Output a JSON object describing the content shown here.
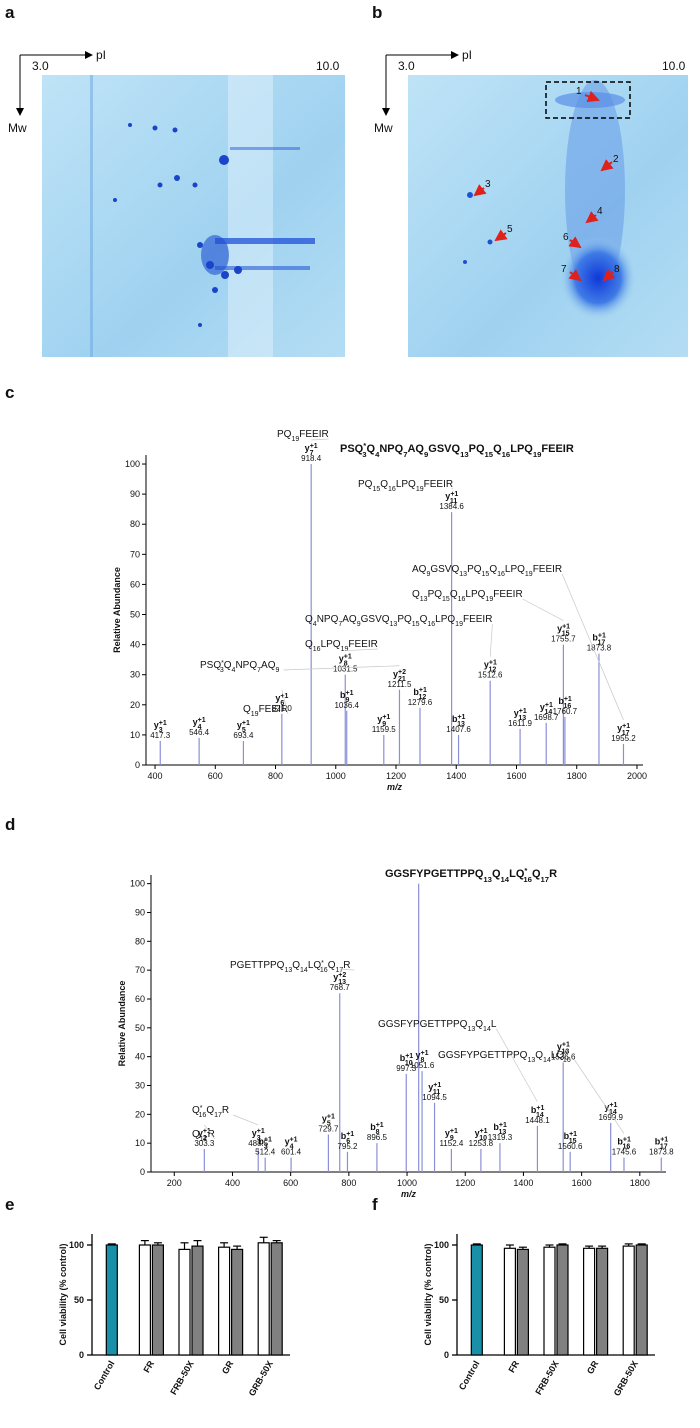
{
  "gels": [
    {
      "label": "a",
      "x_axis": "pI",
      "y_axis": "Mw",
      "x_start": "3.0",
      "x_end": "10.0"
    },
    {
      "label": "b",
      "x_axis": "pI",
      "y_axis": "Mw",
      "x_start": "3.0",
      "x_end": "10.0",
      "spots": [
        "1",
        "2",
        "3",
        "4",
        "5",
        "6",
        "7",
        "8"
      ]
    }
  ],
  "chart_data": [
    {
      "panel": "c",
      "type": "spectrum",
      "color": "#8a8fd8",
      "title": [
        {
          "t": "PSQ"
        },
        {
          "sup": "*"
        },
        {
          "sub": "3"
        },
        {
          "t": "Q"
        },
        {
          "sub": "4"
        },
        {
          "t": "NPQ"
        },
        {
          "sub": "7"
        },
        {
          "t": "AQ"
        },
        {
          "sub": "9"
        },
        {
          "t": "GSVQ"
        },
        {
          "sub": "13"
        },
        {
          "t": "PQ"
        },
        {
          "sub": "15"
        },
        {
          "t": "Q"
        },
        {
          "sub": "16"
        },
        {
          "t": "LPQ"
        },
        {
          "sub": "19"
        },
        {
          "t": "FEEIR"
        }
      ],
      "xlabel": "m/z",
      "ylabel": "Relative Abundance",
      "xlim": [
        370,
        2020
      ],
      "ylim": [
        0,
        103
      ],
      "xticks": [
        400,
        600,
        800,
        1000,
        1200,
        1400,
        1600,
        1800,
        2000
      ],
      "yticks": [
        0,
        10,
        20,
        30,
        40,
        50,
        60,
        70,
        80,
        90,
        100
      ],
      "peaks": [
        {
          "x": 417.3,
          "y": 8,
          "ion": "y",
          "sub": "3",
          "sup": "+1",
          "label": "417.3"
        },
        {
          "x": 546.4,
          "y": 9,
          "ion": "y",
          "sub": "4",
          "sup": "+1",
          "label": "546.4"
        },
        {
          "x": 693.4,
          "y": 8,
          "ion": "y",
          "sub": "5",
          "sup": "+1",
          "label": "693.4"
        },
        {
          "x": 821,
          "y": 17,
          "ion": "y",
          "sub": "6",
          "sup": "+1",
          "label": "821.0",
          "fragment": [
            {
              "t": "Q"
            },
            {
              "sub": "19"
            },
            {
              "t": "FEEIR"
            }
          ]
        },
        {
          "x": 918.4,
          "y": 100,
          "ion": "y",
          "sub": "7",
          "sup": "+1",
          "label": "918.4",
          "fragment": [
            {
              "t": "PQ"
            },
            {
              "sub": "19"
            },
            {
              "t": "FEEIR"
            }
          ]
        },
        {
          "x": 1031.5,
          "y": 30,
          "ion": "y",
          "sub": "8",
          "sup": "+1",
          "label": "1031.5",
          "fragment": [
            {
              "t": "Q"
            },
            {
              "sub": "16"
            },
            {
              "t": "LPQ"
            },
            {
              "sub": "19"
            },
            {
              "t": "FEEIR"
            }
          ]
        },
        {
          "x": 1036.4,
          "y": 18,
          "ion": "b",
          "sub": "9",
          "sup": "+1",
          "label": "1036.4"
        },
        {
          "x": 1159.5,
          "y": 10,
          "ion": "y",
          "sub": "9",
          "sup": "+1",
          "label": "1159.5"
        },
        {
          "x": 1211.5,
          "y": 25,
          "ion": "y",
          "sub": "21",
          "sup": "+2",
          "label": "1211.5",
          "fragment": [
            {
              "t": "PSQ"
            },
            {
              "sup": "*"
            },
            {
              "sub": "3"
            },
            {
              "t": "Q"
            },
            {
              "sub": "4"
            },
            {
              "t": "NPQ"
            },
            {
              "sub": "7"
            },
            {
              "t": "AQ"
            },
            {
              "sub": "9"
            }
          ]
        },
        {
          "x": 1279.6,
          "y": 19,
          "ion": "b",
          "sub": "12",
          "sup": "+1",
          "label": "1279.6"
        },
        {
          "x": 1384.6,
          "y": 84,
          "ion": "y",
          "sub": "11",
          "sup": "+1",
          "label": "1384.6",
          "fragment": [
            {
              "t": "PQ"
            },
            {
              "sub": "15"
            },
            {
              "t": "Q"
            },
            {
              "sub": "16"
            },
            {
              "t": "LPQ"
            },
            {
              "sub": "19"
            },
            {
              "t": "FEEIR"
            }
          ]
        },
        {
          "x": 1407.6,
          "y": 10,
          "ion": "b",
          "sub": "13",
          "sup": "+1",
          "label": "1407.6"
        },
        {
          "x": 1512.6,
          "y": 28,
          "ion": "y",
          "sub": "12",
          "sup": "+1",
          "label": "1512.6",
          "fragment": [
            {
              "t": "Q"
            },
            {
              "sub": "4"
            },
            {
              "t": "NPQ"
            },
            {
              "sub": "7"
            },
            {
              "t": "AQ"
            },
            {
              "sub": "9"
            },
            {
              "t": "GSVQ"
            },
            {
              "sub": "13"
            },
            {
              "t": "PQ"
            },
            {
              "sub": "15"
            },
            {
              "t": "Q"
            },
            {
              "sub": "16"
            },
            {
              "t": "LPQ"
            },
            {
              "sub": "19"
            },
            {
              "t": "FEEIR"
            }
          ]
        },
        {
          "x": 1611.9,
          "y": 12,
          "ion": "y",
          "sub": "13",
          "sup": "+1",
          "label": "1611.9"
        },
        {
          "x": 1698.7,
          "y": 14,
          "ion": "y",
          "sub": "14",
          "sup": "+1",
          "label": "1698.7"
        },
        {
          "x": 1755.7,
          "y": 40,
          "ion": "y",
          "sub": "15",
          "sup": "+1",
          "label": "1755.7",
          "fragment": [
            {
              "t": "Q"
            },
            {
              "sub": "13"
            },
            {
              "t": "PQ"
            },
            {
              "sub": "15"
            },
            {
              "t": "Q"
            },
            {
              "sub": "16"
            },
            {
              "t": "LPQ"
            },
            {
              "sub": "19"
            },
            {
              "t": "FEEIR"
            }
          ]
        },
        {
          "x": 1760.7,
          "y": 16,
          "ion": "b",
          "sub": "16",
          "sup": "+1",
          "label": "1760.7"
        },
        {
          "x": 1873.8,
          "y": 37,
          "ion": "b",
          "sub": "17",
          "sup": "+1",
          "label": "1873.8"
        },
        {
          "x": 1955.2,
          "y": 7,
          "ion": "y",
          "sub": "17",
          "sup": "+1",
          "label": "1955.2",
          "fragment": [
            {
              "t": "AQ"
            },
            {
              "sub": "9"
            },
            {
              "t": "GSVQ"
            },
            {
              "sub": "13"
            },
            {
              "t": "PQ"
            },
            {
              "sub": "15"
            },
            {
              "t": "Q"
            },
            {
              "sub": "16"
            },
            {
              "t": "LPQ"
            },
            {
              "sub": "19"
            },
            {
              "t": "FEEIR"
            }
          ]
        }
      ]
    },
    {
      "panel": "d",
      "type": "spectrum",
      "color": "#8a8fd8",
      "title": [
        {
          "t": "GGSFYPGETTPPQ"
        },
        {
          "sub": "13"
        },
        {
          "t": "Q"
        },
        {
          "sub": "14"
        },
        {
          "t": "LQ"
        },
        {
          "sup": "*"
        },
        {
          "sub": "16"
        },
        {
          "t": "Q"
        },
        {
          "sub": "17"
        },
        {
          "t": "R"
        }
      ],
      "xlabel": "m/z",
      "ylabel": "Relative Abundance",
      "xlim": [
        120,
        1890
      ],
      "ylim": [
        0,
        103
      ],
      "xticks": [
        200,
        400,
        600,
        800,
        1000,
        1200,
        1400,
        1600,
        1800
      ],
      "yticks": [
        0,
        10,
        20,
        30,
        40,
        50,
        60,
        70,
        80,
        90,
        100
      ],
      "peaks": [
        {
          "x": 303.3,
          "y": 8,
          "ion": "y",
          "sub": "2",
          "sup": "+1",
          "label": "303.3",
          "fragment": [
            {
              "t": "Q"
            },
            {
              "sub": "17"
            },
            {
              "t": "R"
            }
          ]
        },
        {
          "x": 488.5,
          "y": 8,
          "ion": "y",
          "sub": "3",
          "sup": "+1",
          "label": "488.5",
          "fragment": [
            {
              "t": "Q"
            },
            {
              "sup": "*"
            },
            {
              "sub": "16"
            },
            {
              "t": "Q"
            },
            {
              "sub": "17"
            },
            {
              "t": "R"
            }
          ]
        },
        {
          "x": 512.4,
          "y": 5,
          "ion": "b",
          "sub": "3",
          "sup": "+1",
          "label": "512.4"
        },
        {
          "x": 601.4,
          "y": 5,
          "ion": "y",
          "sub": "4",
          "sup": "+1",
          "label": "601.4"
        },
        {
          "x": 729.7,
          "y": 13,
          "ion": "y",
          "sub": "5",
          "sup": "+1",
          "label": "729.7"
        },
        {
          "x": 768.7,
          "y": 62,
          "ion": "y",
          "sub": "13",
          "sup": "+2",
          "label": "768.7",
          "fragment": [
            {
              "t": "PGETTPPQ"
            },
            {
              "sub": "13"
            },
            {
              "t": "Q"
            },
            {
              "sub": "14"
            },
            {
              "t": "LQ"
            },
            {
              "sup": "*"
            },
            {
              "sub": "16"
            },
            {
              "t": "Q"
            },
            {
              "sub": "17"
            },
            {
              "t": "R"
            }
          ]
        },
        {
          "x": 795.2,
          "y": 7,
          "ion": "b",
          "sub": "6",
          "sup": "+1",
          "label": "795.2"
        },
        {
          "x": 896.5,
          "y": 10,
          "ion": "b",
          "sub": "8",
          "sup": "+1",
          "label": "896.5"
        },
        {
          "x": 997.3,
          "y": 34,
          "ion": "b",
          "sub": "10",
          "sup": "+1",
          "label": "997.3"
        },
        {
          "x": 1040,
          "y": 100
        },
        {
          "x": 1051.6,
          "y": 35,
          "ion": "y",
          "sub": "8",
          "sup": "+1",
          "label": "1051.6"
        },
        {
          "x": 1094.5,
          "y": 24,
          "ion": "y",
          "sub": "11",
          "sup": "+1",
          "label": "1094.5"
        },
        {
          "x": 1152.4,
          "y": 8,
          "ion": "y",
          "sub": "9",
          "sup": "+1",
          "label": "1152.4"
        },
        {
          "x": 1253.8,
          "y": 8,
          "ion": "y",
          "sub": "10",
          "sup": "+1",
          "label": "1253.8"
        },
        {
          "x": 1319.3,
          "y": 10,
          "ion": "b",
          "sub": "13",
          "sup": "+1",
          "label": "1319.3"
        },
        {
          "x": 1448.1,
          "y": 16,
          "ion": "b",
          "sub": "14",
          "sup": "+1",
          "label": "1448.1",
          "fragment": [
            {
              "t": "GGSFYPGETTPPQ"
            },
            {
              "sub": "13"
            },
            {
              "t": "Q"
            },
            {
              "sub": "14"
            },
            {
              "t": "L"
            }
          ]
        },
        {
          "x": 1536.6,
          "y": 38,
          "ion": "y",
          "sub": "13",
          "sup": "+1",
          "label": "1536.6"
        },
        {
          "x": 1560.6,
          "y": 7,
          "ion": "b",
          "sub": "15",
          "sup": "+1",
          "label": "1560.6"
        },
        {
          "x": 1699.9,
          "y": 17,
          "ion": "y",
          "sub": "14",
          "sup": "+1",
          "label": "1699.9"
        },
        {
          "x": 1745.6,
          "y": 5,
          "ion": "b",
          "sub": "16",
          "sup": "+1",
          "label": "1745.6",
          "fragment": [
            {
              "t": "GGSFYPGETTPPQ"
            },
            {
              "sub": "13"
            },
            {
              "t": "Q"
            },
            {
              "sub": "14"
            },
            {
              "t": "LQ"
            },
            {
              "sup": "*"
            },
            {
              "sub": "16"
            }
          ]
        },
        {
          "x": 1873.8,
          "y": 5,
          "ion": "b",
          "sub": "17",
          "sup": "+1",
          "label": "1873.8"
        }
      ]
    },
    {
      "panel": "e",
      "type": "bar",
      "ylabel": "Cell viability (% control)",
      "categories": [
        "Control",
        "FR",
        "FRB-50X",
        "GR",
        "GRB-50X"
      ],
      "ylim": [
        0,
        110
      ],
      "yticks": [
        0,
        50,
        100
      ],
      "series": [
        {
          "color": "#1a8fa8",
          "values": [
            100,
            null,
            null,
            null,
            null
          ],
          "errors": [
            1,
            null,
            null,
            null,
            null
          ]
        },
        {
          "color": "#ffffff",
          "values": [
            null,
            100,
            96,
            98,
            102
          ],
          "errors": [
            null,
            4,
            6,
            4,
            5
          ]
        },
        {
          "color": "#808080",
          "values": [
            null,
            100,
            99,
            96,
            102
          ],
          "errors": [
            null,
            2,
            5,
            3,
            2
          ]
        }
      ]
    },
    {
      "panel": "f",
      "type": "bar",
      "ylabel": "Cell viability (% control)",
      "categories": [
        "Control",
        "FR",
        "FRB-50X",
        "GR",
        "GRB-50X"
      ],
      "ylim": [
        0,
        110
      ],
      "yticks": [
        0,
        50,
        100
      ],
      "series": [
        {
          "color": "#1a8fa8",
          "values": [
            100,
            null,
            null,
            null,
            null
          ],
          "errors": [
            1,
            null,
            null,
            null,
            null
          ]
        },
        {
          "color": "#ffffff",
          "values": [
            null,
            97,
            98,
            97,
            99
          ],
          "errors": [
            null,
            3,
            2,
            2,
            2
          ]
        },
        {
          "color": "#808080",
          "values": [
            null,
            96,
            100,
            97,
            100
          ],
          "errors": [
            null,
            2,
            1,
            2,
            1
          ]
        }
      ]
    }
  ]
}
